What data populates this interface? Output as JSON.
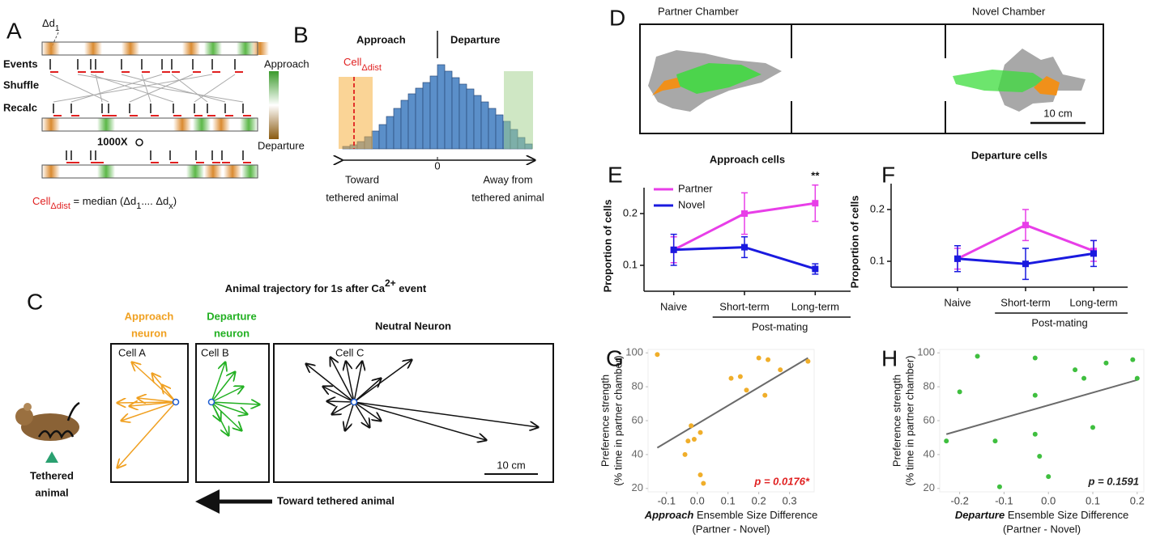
{
  "figure": {
    "panel_labels": [
      "A",
      "B",
      "C",
      "D",
      "E",
      "F",
      "G",
      "H"
    ],
    "panel_a": {
      "delta_label": "Δd",
      "delta_sub": "1",
      "rows": [
        "Events",
        "Shuffle",
        "Recalc"
      ],
      "repeat": "1000X",
      "colorbar_top": "Approach",
      "colorbar_bottom": "Departure",
      "formula_cell": "Cell",
      "formula_sub": "Δdist",
      "formula_rest": " = median (Δd",
      "formula_sub2": "1",
      "formula_mid": ".... Δd",
      "formula_sub3": "x",
      "formula_end": ")"
    },
    "panel_c": {
      "title": "Animal trajectory for 1s after Ca",
      "title_sup": "2+",
      "title_end": " event",
      "approach": [
        "Approach",
        "neuron"
      ],
      "departure": [
        "Departure",
        "neuron"
      ],
      "neutral": "Neutral Neuron",
      "cells": [
        "Cell A",
        "Cell B",
        "Cell C"
      ],
      "scale": "10 cm",
      "tethered": [
        "Tethered",
        "animal"
      ],
      "toward": "Toward tethered animal"
    },
    "panel_d": {
      "partner": "Partner Chamber",
      "novel": "Novel Chamber",
      "scale": "10 cm"
    }
  },
  "chart_data": [
    {
      "type": "histogram",
      "left_label": "Approach",
      "right_label": "Departure",
      "cell_label": "Cell",
      "cell_sub": "Δdist",
      "bins": [
        -13,
        -12,
        -11,
        -10,
        -9,
        -8,
        -7,
        -6,
        -5,
        -4,
        -3,
        -2,
        -1,
        0,
        1,
        2,
        3,
        4,
        5,
        6,
        7,
        8,
        9,
        10,
        11,
        12,
        13
      ],
      "counts": [
        3,
        5,
        9,
        15,
        22,
        30,
        40,
        50,
        60,
        68,
        75,
        82,
        90,
        104,
        96,
        88,
        80,
        74,
        66,
        58,
        50,
        42,
        34,
        24,
        14,
        6
      ],
      "xlim": [
        -15,
        15
      ],
      "xticks": [
        0
      ],
      "color": "#5b8fc9",
      "x_left": [
        "Toward",
        "tethered animal"
      ],
      "x_right": [
        "Away from",
        "tethered animal"
      ]
    },
    {
      "type": "line",
      "title": "Approach cells",
      "y_label": "Proportion of cells",
      "categories": [
        "Naive",
        "Short-term",
        "Long-term"
      ],
      "group_label": "Post-mating",
      "annotation": "**",
      "ylim": [
        0.05,
        0.25
      ],
      "yticks": [
        0.1,
        0.2
      ],
      "legend": true,
      "series": [
        {
          "name": "Partner",
          "color": "#e83ee8",
          "values": [
            0.13,
            0.2,
            0.22
          ],
          "errors": [
            0.025,
            0.04,
            0.035
          ]
        },
        {
          "name": "Novel",
          "color": "#1a1adf",
          "values": [
            0.13,
            0.135,
            0.093
          ],
          "errors": [
            0.03,
            0.02,
            0.01
          ]
        }
      ]
    },
    {
      "type": "line",
      "title": "Departure cells",
      "y_label": "Proportion of cells",
      "categories": [
        "Naive",
        "Short-term",
        "Long-term"
      ],
      "group_label": "Post-mating",
      "ylim": [
        0.05,
        0.25
      ],
      "yticks": [
        0.1,
        0.2
      ],
      "legend": false,
      "series": [
        {
          "color": "#e83ee8",
          "values": [
            0.105,
            0.17,
            0.12
          ],
          "errors": [
            0.02,
            0.03,
            0.02
          ]
        },
        {
          "color": "#1a1adf",
          "values": [
            0.105,
            0.095,
            0.115
          ],
          "errors": [
            0.025,
            0.03,
            0.025
          ]
        }
      ]
    },
    {
      "type": "scatter",
      "x_label_emph": "Approach",
      "x_label_rest": " Ensemble Size Difference",
      "x_label_2": "(Partner - Novel)",
      "y_label": [
        "Preference strength",
        "(% time in partner chamber)"
      ],
      "color": "#f0ae2a",
      "annotation": "p = 0.0176*",
      "annotation_color": "#e02020",
      "x": [
        -0.13,
        -0.04,
        -0.03,
        -0.02,
        -0.01,
        0.01,
        0.01,
        0.02,
        0.11,
        0.14,
        0.16,
        0.2,
        0.22,
        0.23,
        0.27,
        0.36
      ],
      "values": [
        99,
        40,
        48,
        57,
        49,
        53,
        28,
        23,
        85,
        86,
        78,
        97,
        75,
        96,
        90,
        95
      ],
      "fit": {
        "x": [
          -0.13,
          0.36
        ],
        "y": [
          44,
          97
        ]
      },
      "xlim": [
        -0.16,
        0.38
      ],
      "xticks": [
        -0.1,
        {
          "value": 0,
          "label": "0.0"
        },
        0.1,
        0.2,
        0.3
      ],
      "ylim": [
        18,
        102
      ],
      "yticks": [
        20,
        40,
        60,
        80,
        100
      ]
    },
    {
      "type": "scatter",
      "x_label_emph": "Departure",
      "x_label_rest": " Ensemble Size Difference",
      "x_label_2": "(Partner - Novel)",
      "y_label": [
        "Preference strength",
        "(% time in partner chamber)"
      ],
      "color": "#3fbf3f",
      "annotation": "p = 0.1591",
      "annotation_color": "#222222",
      "x": [
        -0.23,
        -0.2,
        -0.16,
        -0.12,
        -0.11,
        -0.03,
        -0.03,
        -0.03,
        -0.02,
        0.0,
        0.06,
        0.08,
        0.1,
        0.13,
        0.19,
        0.2
      ],
      "values": [
        48,
        77,
        98,
        48,
        21,
        97,
        75,
        52,
        39,
        27,
        90,
        85,
        56,
        94,
        96,
        85
      ],
      "fit": {
        "x": [
          -0.23,
          0.2
        ],
        "y": [
          52,
          84
        ]
      },
      "xlim": [
        -0.245,
        0.215
      ],
      "xticks": [
        -0.2,
        -0.1,
        {
          "value": 0,
          "label": "0.0"
        },
        0.1,
        0.2
      ],
      "ylim": [
        18,
        102
      ],
      "yticks": [
        20,
        40,
        60,
        80,
        100
      ]
    }
  ]
}
